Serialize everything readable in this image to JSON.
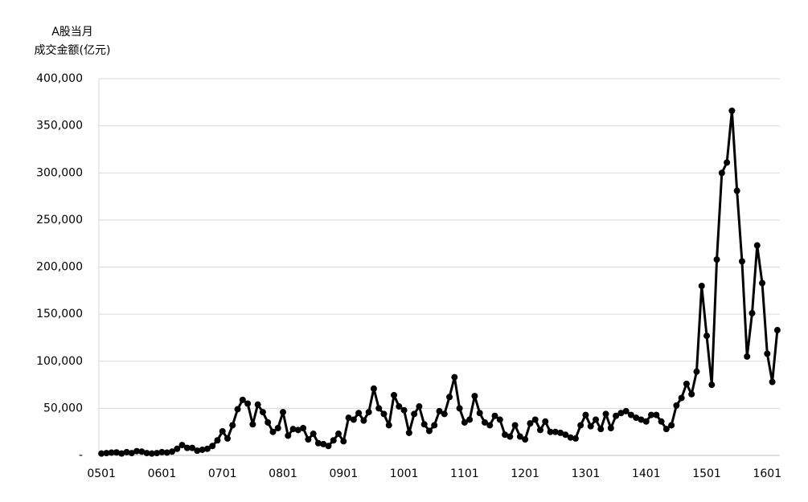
{
  "chart_data": {
    "type": "line",
    "ylabel_lines": [
      "A股当月",
      "成交金额(亿元)"
    ],
    "categories": [
      "0501",
      null,
      null,
      null,
      null,
      null,
      null,
      null,
      null,
      null,
      null,
      null,
      "0601",
      null,
      null,
      null,
      null,
      null,
      null,
      null,
      null,
      null,
      null,
      null,
      "0701",
      null,
      null,
      null,
      null,
      null,
      null,
      null,
      null,
      null,
      null,
      null,
      "0801",
      null,
      null,
      null,
      null,
      null,
      null,
      null,
      null,
      null,
      null,
      null,
      "0901",
      null,
      null,
      null,
      null,
      null,
      null,
      null,
      null,
      null,
      null,
      null,
      "1001",
      null,
      null,
      null,
      null,
      null,
      null,
      null,
      null,
      null,
      null,
      null,
      "1101",
      null,
      null,
      null,
      null,
      null,
      null,
      null,
      null,
      null,
      null,
      null,
      "1201",
      null,
      null,
      null,
      null,
      null,
      null,
      null,
      null,
      null,
      null,
      null,
      "1301",
      null,
      null,
      null,
      null,
      null,
      null,
      null,
      null,
      null,
      null,
      null,
      "1401",
      null,
      null,
      null,
      null,
      null,
      null,
      null,
      null,
      null,
      null,
      null,
      "1501",
      null,
      null,
      null,
      null,
      null,
      null,
      null,
      null,
      null,
      null,
      null,
      "1601",
      null,
      null
    ],
    "values": [
      2000,
      2500,
      3000,
      3200,
      2000,
      3500,
      2500,
      4500,
      4000,
      2500,
      2000,
      2500,
      3500,
      3000,
      4000,
      7000,
      11000,
      8000,
      8000,
      5000,
      6000,
      7000,
      10000,
      16000,
      25600,
      18000,
      32000,
      49000,
      59000,
      55000,
      33000,
      54000,
      46000,
      35000,
      25000,
      29000,
      46000,
      21000,
      28000,
      27000,
      29000,
      17000,
      23000,
      13000,
      12000,
      10000,
      16000,
      23000,
      15000,
      40000,
      38000,
      45000,
      37000,
      46000,
      71000,
      50000,
      44000,
      32000,
      64000,
      52000,
      48000,
      24000,
      44000,
      52000,
      33000,
      26000,
      32000,
      47000,
      44000,
      62000,
      83000,
      50000,
      35000,
      38000,
      63000,
      45000,
      35000,
      32000,
      42000,
      38000,
      22000,
      20000,
      32000,
      20000,
      17000,
      34000,
      38000,
      27000,
      36000,
      25000,
      25000,
      24000,
      22000,
      19000,
      18000,
      32000,
      43000,
      31000,
      38000,
      28000,
      44000,
      29000,
      42000,
      45000,
      47000,
      43000,
      40000,
      38000,
      36000,
      43000,
      43000,
      36000,
      28000,
      32000,
      53000,
      61000,
      76000,
      65000,
      89000,
      180000,
      127000,
      75000,
      208000,
      300000,
      311000,
      366000,
      281000,
      206000,
      105000,
      151000,
      223000,
      183000,
      108000,
      78000,
      133000
    ],
    "color": "#000000",
    "ylim": [
      0,
      400000
    ],
    "yticks": [
      {
        "value": 0,
        "label": "-"
      },
      {
        "value": 50000,
        "label": "50,000"
      },
      {
        "value": 100000,
        "label": "100,000"
      },
      {
        "value": 150000,
        "label": "150,000"
      },
      {
        "value": 200000,
        "label": "200,000"
      },
      {
        "value": 250000,
        "label": "250,000"
      },
      {
        "value": 300000,
        "label": "300,000"
      },
      {
        "value": 350000,
        "label": "350,000"
      },
      {
        "value": 400000,
        "label": "400,000"
      }
    ],
    "grid": true
  }
}
